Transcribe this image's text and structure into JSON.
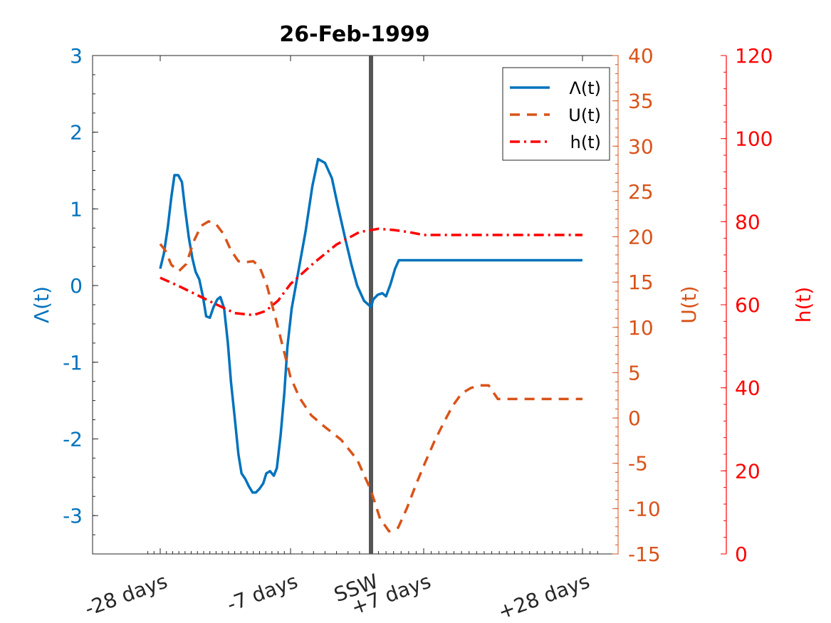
{
  "chart_data": {
    "type": "line",
    "title": "26-Feb-1999",
    "x_tick_labels": [
      "-28 days",
      "-7 days",
      "SSW",
      "+7 days",
      "+28 days"
    ],
    "x_tick_days": [
      -28,
      -7,
      0,
      7,
      28
    ],
    "axes": {
      "left": {
        "label": "Λ(t)",
        "ylim": [
          -3.5,
          3
        ],
        "ticks": [
          -3,
          -2,
          -1,
          0,
          1,
          2,
          3
        ],
        "color": "#0072BD"
      },
      "right1": {
        "label": "U(t)",
        "ylim": [
          -15,
          40
        ],
        "ticks": [
          -15,
          -10,
          -5,
          0,
          5,
          10,
          15,
          20,
          25,
          30,
          35,
          40
        ],
        "color": "#D95319"
      },
      "right2": {
        "label": "h(t)",
        "ylim": [
          0,
          120
        ],
        "ticks": [
          0,
          20,
          40,
          60,
          80,
          100,
          120
        ],
        "color": "#FF0000"
      }
    },
    "ssw_day": 0,
    "ssw_line_color": "#555555",
    "legend": {
      "position": "top-right",
      "entries": [
        "Λ(t)",
        "U(t)",
        "h(t)"
      ]
    },
    "series": [
      {
        "name": "Λ(t)",
        "axis": "left",
        "color": "#0072BD",
        "style": "solid",
        "x": [
          -28,
          -27.4,
          -26.8,
          -26.2,
          -25.7,
          -25.1,
          -24.5,
          -24,
          -23.4,
          -22.8,
          -22.3,
          -21.7,
          -21.1,
          -20.6,
          -20,
          -19.4,
          -18.8,
          -18.3,
          -17.7,
          -17.1,
          -16.6,
          -16,
          -15.4,
          -14.9,
          -14.3,
          -13.7,
          -13.1,
          -12.6,
          -12,
          -11.4,
          -10.9,
          -10.3,
          -9.7,
          -9.2,
          -8.6,
          -8,
          -7.5,
          -6.9,
          -6.3,
          -5.7,
          -5.1,
          -4.6,
          -4,
          -3.4,
          -2.9,
          -2.3,
          -1.7,
          -1.2,
          -0.6,
          0,
          0.3,
          0.9,
          1.5,
          2,
          2.6,
          3.2,
          3.7,
          4.3,
          4.9,
          5.5,
          6,
          6.6,
          7.2,
          7.8,
          8.3,
          8.9,
          9.5,
          10,
          10.6,
          11.2,
          11.7,
          12.3,
          12.9,
          13.5,
          14,
          14.6,
          15.2,
          15.7,
          16.3,
          16.9,
          17.5,
          18,
          18.6,
          19.2,
          19.7,
          20.3,
          20.9,
          21.5,
          22,
          22.6,
          23.2,
          23.7,
          24.3,
          24.9,
          25.4,
          26,
          26.6,
          27.2,
          27.7,
          28
        ],
        "y": [
          0.22,
          0.42,
          0.75,
          1.16,
          1.44,
          1.44,
          1.35,
          1.0,
          0.63,
          0.35,
          0.18,
          0.08,
          -0.15,
          -0.4,
          -0.42,
          -0.28,
          -0.18,
          -0.15,
          -0.3,
          -0.75,
          -1.25,
          -1.72,
          -2.2,
          -2.45,
          -2.52,
          -2.62,
          -2.7,
          -2.7,
          -2.65,
          -2.58,
          -2.45,
          -2.42,
          -2.48,
          -2.38,
          -1.95,
          -1.4,
          -0.8,
          -0.3,
          0.2,
          0.7,
          1.3,
          1.65,
          1.6,
          1.4,
          1.05,
          0.65,
          0.27,
          0.0,
          -0.2,
          -0.28,
          -0.18,
          -0.12,
          -0.1,
          -0.14,
          0.02,
          0.22,
          0.33,
          0.33,
          0.33,
          0.33,
          0.33,
          0.33,
          0.33,
          0.33,
          0.33,
          0.33,
          0.33,
          0.33,
          0.33,
          0.33,
          0.33,
          0.33,
          0.33,
          0.33,
          0.33,
          0.33,
          0.33,
          0.33,
          0.33,
          0.33,
          0.33,
          0.33,
          0.33,
          0.33,
          0.33,
          0.33,
          0.33,
          0.33,
          0.33,
          0.33,
          0.33,
          0.33,
          0.33,
          0.33,
          0.33,
          0.33,
          0.33,
          0.33,
          0.33,
          0.33
        ]
      },
      {
        "name": "U(t)",
        "axis": "right1",
        "color": "#D95319",
        "style": "dashed",
        "x": [
          -28,
          -27.2,
          -26.2,
          -25.0,
          -23.8,
          -22.6,
          -21.4,
          -20.2,
          -19.0,
          -17.8,
          -16.6,
          -15.4,
          -14.2,
          -13.0,
          -12.0,
          -10.8,
          -9.4,
          -8.0,
          -7.0,
          -6.2,
          -5.2,
          -4.0,
          -2.6,
          -1.2,
          0.0,
          1.2,
          2.4,
          3.6,
          4.8,
          6.0,
          7.2,
          8.4,
          9.6,
          10.8,
          12.0,
          13.2,
          14.4,
          15.6,
          16.8,
          18.0,
          19.2,
          20.4,
          21.6,
          22.8,
          24.0,
          25.2,
          26.4,
          27.2,
          28.0
        ],
        "y": [
          19.2,
          18.5,
          16.9,
          16.2,
          17.0,
          19.5,
          21.2,
          21.7,
          21.4,
          20.3,
          18.5,
          17.3,
          17.2,
          17.3,
          16.7,
          14.6,
          11.0,
          7.2,
          4.5,
          2.2,
          0.3,
          -1.0,
          -2.4,
          -4.6,
          -8.0,
          -11.1,
          -12.5,
          -12.1,
          -9.9,
          -7.3,
          -4.9,
          -2.6,
          -0.6,
          1.3,
          2.7,
          3.3,
          3.6,
          3.6,
          2.1,
          2.1,
          2.1,
          2.1,
          2.1,
          2.1,
          2.1,
          2.1,
          2.1,
          2.1,
          2.1
        ]
      },
      {
        "name": "h(t)",
        "axis": "right2",
        "color": "#FF0000",
        "style": "dashdot",
        "x": [
          -28,
          -25,
          -22,
          -19,
          -16,
          -13,
          -11,
          -9,
          -7,
          -5,
          -3,
          -1,
          1,
          3,
          5,
          7,
          10,
          13,
          16,
          19,
          22,
          25,
          28
        ],
        "y": [
          66.5,
          64.5,
          62.3,
          60.1,
          58.0,
          57.5,
          58.5,
          61.0,
          65.0,
          70.0,
          74.5,
          77.5,
          78.3,
          78.0,
          77.5,
          76.8,
          76.8,
          76.8,
          76.8,
          76.8,
          76.8,
          76.8,
          76.8
        ]
      }
    ]
  }
}
